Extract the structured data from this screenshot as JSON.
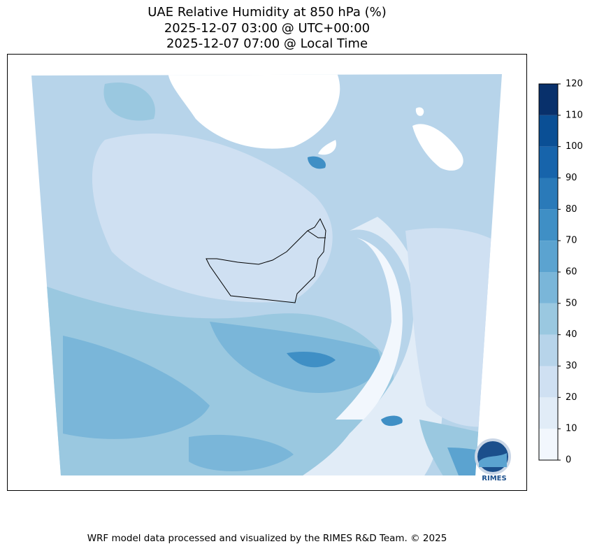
{
  "title": [
    "UAE Relative Humidity at 850 hPa (%)",
    "2025-12-07 03:00 @ UTC+00:00",
    "2025-12-07 07:00 @ Local Time"
  ],
  "colorbar": {
    "lim": [
      0,
      120
    ],
    "ticks": [
      0,
      10,
      20,
      30,
      40,
      50,
      60,
      70,
      80,
      90,
      100,
      110,
      120
    ],
    "colors": [
      "#f2f7fd",
      "#e1ecf7",
      "#cfe0f2",
      "#b7d4ea",
      "#9ac8e0",
      "#7ab6d9",
      "#5ba3d0",
      "#3f8fc5",
      "#2a7ab9",
      "#1764ab",
      "#0a4f95",
      "#08306b"
    ]
  },
  "logo": "RIMES",
  "footer": "WRF model data processed and visualized by the RIMES R&D Team. © 2025"
}
